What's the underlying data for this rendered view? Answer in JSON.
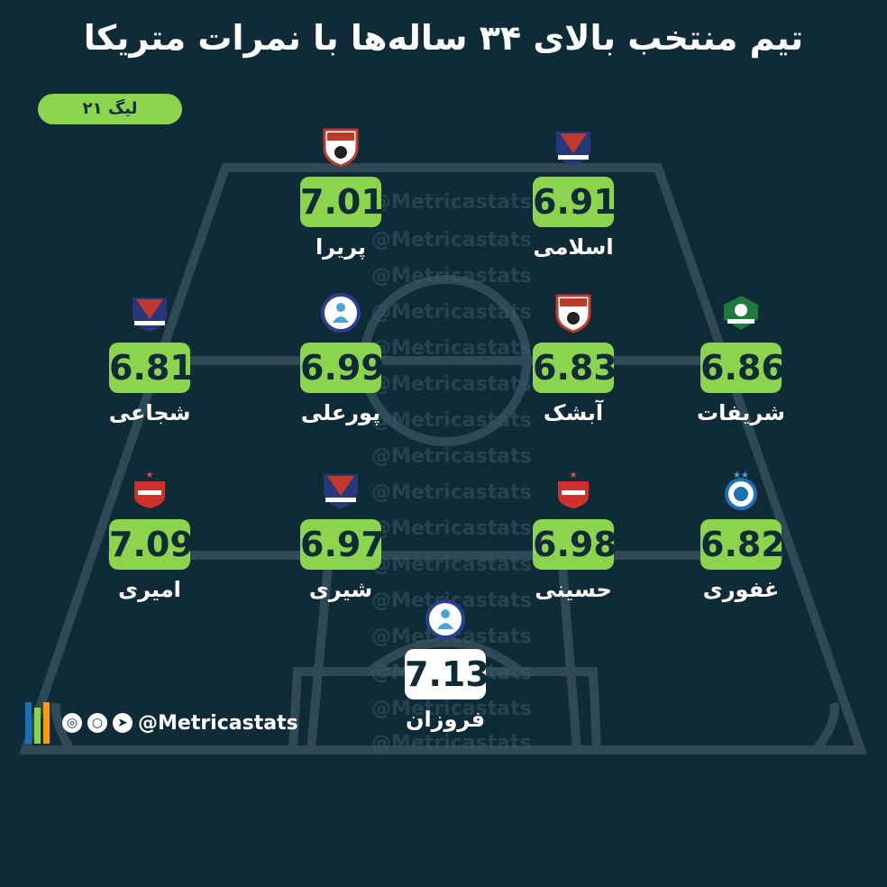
{
  "title": "تیم منتخب بالای ۳۴ ساله‌ها با نمرات متریکا",
  "league": "لیگ ۲۱",
  "watermark": "@Metricastats",
  "footer": {
    "handle": "@Metricastats"
  },
  "colors": {
    "background": "#0f2b38",
    "accent": "#8dd44e",
    "pitch_lines": "#2f4a56"
  },
  "players": [
    {
      "name": "پریرا",
      "score": "7.01",
      "team_logo": "foolad-logo"
    },
    {
      "name": "اسلامی",
      "score": "6.91",
      "team_logo": "nassaji-logo"
    },
    {
      "name": "شجاعی",
      "score": "6.81",
      "team_logo": "nassaji-logo"
    },
    {
      "name": "پورعلی",
      "score": "6.99",
      "team_logo": "havadar-logo"
    },
    {
      "name": "آبشک",
      "score": "6.83",
      "team_logo": "foolad-logo"
    },
    {
      "name": "شریفات",
      "score": "6.86",
      "team_logo": "zob-ahan-logo"
    },
    {
      "name": "امیری",
      "score": "7.09",
      "team_logo": "persepolis-logo"
    },
    {
      "name": "شیری",
      "score": "6.97",
      "team_logo": "nassaji-logo"
    },
    {
      "name": "حسینی",
      "score": "6.98",
      "team_logo": "persepolis-logo"
    },
    {
      "name": "غفوری",
      "score": "6.82",
      "team_logo": "esteghlal-logo"
    },
    {
      "name": "فروزان",
      "score": "7.13",
      "team_logo": "havadar-logo"
    }
  ]
}
